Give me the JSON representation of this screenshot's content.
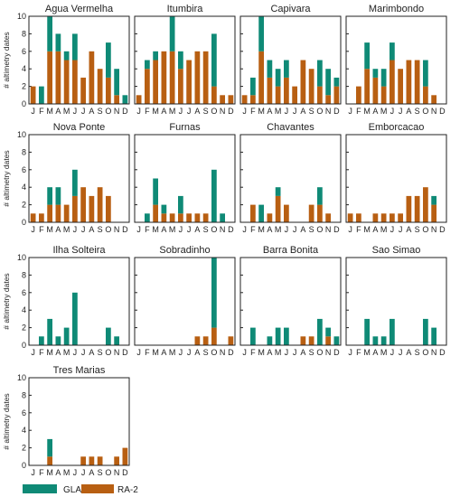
{
  "colors": {
    "GLAS": "#0f8a76",
    "RA-2": "#b85f12"
  },
  "chart_data": {
    "type": "bar",
    "stacked": true,
    "categories": [
      "J",
      "F",
      "M",
      "A",
      "M",
      "J",
      "J",
      "A",
      "S",
      "O",
      "N",
      "D"
    ],
    "ylabel": "# altimetry dates",
    "ylim": [
      0,
      10
    ],
    "yticks": [
      0,
      2,
      4,
      6,
      8,
      10
    ],
    "grid": false,
    "legend": {
      "position": "bottom-left",
      "entries": [
        "GLAS",
        "RA-2"
      ]
    },
    "panels": [
      {
        "title": "Agua Vermelha",
        "series": [
          {
            "name": "RA-2",
            "values": [
              2,
              0,
              6,
              6,
              5,
              5,
              3,
              6,
              4,
              3,
              1,
              0
            ]
          },
          {
            "name": "GLAS",
            "values": [
              0,
              2,
              4,
              2,
              1,
              3,
              0,
              0,
              0,
              4,
              3,
              1
            ]
          }
        ]
      },
      {
        "title": "Itumbira",
        "series": [
          {
            "name": "RA-2",
            "values": [
              1,
              4,
              5,
              6,
              6,
              4,
              5,
              6,
              6,
              2,
              1,
              1
            ]
          },
          {
            "name": "GLAS",
            "values": [
              0,
              1,
              1,
              0,
              4,
              2,
              0,
              0,
              0,
              6,
              0,
              0
            ]
          }
        ]
      },
      {
        "title": "Capivara",
        "series": [
          {
            "name": "RA-2",
            "values": [
              1,
              1,
              6,
              3,
              2,
              3,
              2,
              5,
              4,
              2,
              1,
              2
            ]
          },
          {
            "name": "GLAS",
            "values": [
              0,
              2,
              4,
              2,
              2,
              2,
              0,
              0,
              0,
              3,
              3,
              1
            ]
          }
        ]
      },
      {
        "title": "Marimbondo",
        "series": [
          {
            "name": "RA-2",
            "values": [
              0,
              2,
              4,
              3,
              2,
              5,
              4,
              5,
              5,
              2,
              1,
              0
            ]
          },
          {
            "name": "GLAS",
            "values": [
              0,
              0,
              3,
              1,
              2,
              2,
              0,
              0,
              0,
              3,
              0,
              0
            ]
          }
        ]
      },
      {
        "title": "Nova Ponte",
        "series": [
          {
            "name": "RA-2",
            "values": [
              1,
              1,
              2,
              2,
              2,
              3,
              4,
              3,
              4,
              3,
              0,
              0
            ]
          },
          {
            "name": "GLAS",
            "values": [
              0,
              0,
              2,
              2,
              0,
              3,
              0,
              0,
              0,
              0,
              0,
              0
            ]
          }
        ]
      },
      {
        "title": "Furnas",
        "series": [
          {
            "name": "RA-2",
            "values": [
              0,
              0,
              2,
              1,
              1,
              1,
              1,
              1,
              1,
              0,
              0,
              0
            ]
          },
          {
            "name": "GLAS",
            "values": [
              0,
              1,
              3,
              1,
              0,
              2,
              0,
              0,
              0,
              6,
              1,
              0
            ]
          }
        ]
      },
      {
        "title": "Chavantes",
        "series": [
          {
            "name": "RA-2",
            "values": [
              0,
              2,
              0,
              1,
              3,
              2,
              0,
              0,
              2,
              2,
              1,
              0
            ]
          },
          {
            "name": "GLAS",
            "values": [
              0,
              0,
              2,
              0,
              1,
              0,
              0,
              0,
              0,
              2,
              0,
              0
            ]
          }
        ]
      },
      {
        "title": "Emborcacao",
        "series": [
          {
            "name": "RA-2",
            "values": [
              1,
              1,
              0,
              1,
              1,
              1,
              1,
              3,
              3,
              4,
              2,
              0
            ]
          },
          {
            "name": "GLAS",
            "values": [
              0,
              0,
              0,
              0,
              0,
              0,
              0,
              0,
              0,
              0,
              1,
              0
            ]
          }
        ]
      },
      {
        "title": "Ilha Solteira",
        "series": [
          {
            "name": "RA-2",
            "values": [
              0,
              0,
              0,
              0,
              0,
              0,
              0,
              0,
              0,
              0,
              0,
              0
            ]
          },
          {
            "name": "GLAS",
            "values": [
              0,
              1,
              3,
              1,
              2,
              6,
              0,
              0,
              0,
              2,
              1,
              0
            ]
          }
        ]
      },
      {
        "title": "Sobradinho",
        "series": [
          {
            "name": "RA-2",
            "values": [
              0,
              0,
              0,
              0,
              0,
              0,
              0,
              1,
              1,
              2,
              0,
              1
            ]
          },
          {
            "name": "GLAS",
            "values": [
              0,
              0,
              0,
              0,
              0,
              0,
              0,
              0,
              0,
              8,
              0,
              0
            ]
          }
        ]
      },
      {
        "title": "Barra Bonita",
        "series": [
          {
            "name": "RA-2",
            "values": [
              0,
              0,
              0,
              0,
              0,
              0,
              0,
              1,
              1,
              0,
              1,
              0
            ]
          },
          {
            "name": "GLAS",
            "values": [
              0,
              2,
              0,
              1,
              2,
              2,
              0,
              0,
              0,
              3,
              1,
              1
            ]
          }
        ]
      },
      {
        "title": "Sao Simao",
        "series": [
          {
            "name": "RA-2",
            "values": [
              0,
              0,
              0,
              0,
              0,
              0,
              0,
              0,
              0,
              0,
              0,
              0
            ]
          },
          {
            "name": "GLAS",
            "values": [
              0,
              0,
              3,
              1,
              1,
              3,
              0,
              0,
              0,
              3,
              2,
              0
            ]
          }
        ]
      },
      {
        "title": "Tres Marias",
        "series": [
          {
            "name": "RA-2",
            "values": [
              0,
              0,
              1,
              0,
              0,
              0,
              1,
              1,
              1,
              0,
              1,
              2
            ]
          },
          {
            "name": "GLAS",
            "values": [
              0,
              0,
              2,
              0,
              0,
              0,
              0,
              0,
              0,
              0,
              0,
              0
            ]
          }
        ]
      }
    ]
  }
}
